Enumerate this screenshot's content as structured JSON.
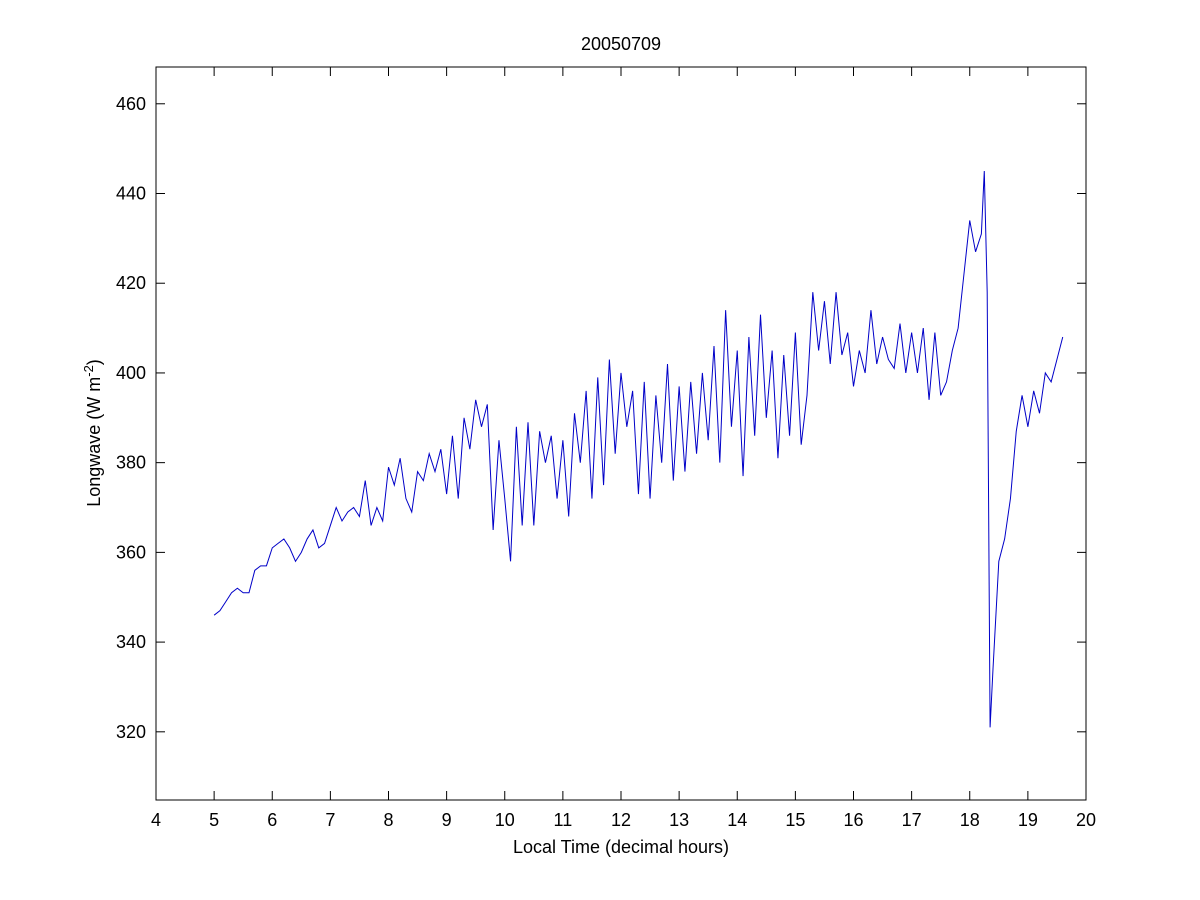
{
  "chart_data": {
    "type": "line",
    "title": "20050709",
    "xlabel": "Local Time (decimal hours)",
    "ylabel": [
      "Longwave (W m",
      "-2",
      ")"
    ],
    "xlim": [
      4,
      20
    ],
    "xticks": [
      4,
      5,
      6,
      7,
      8,
      9,
      10,
      11,
      12,
      13,
      14,
      15,
      16,
      17,
      18,
      19,
      20
    ],
    "ylim": [
      304.8,
      468.2
    ],
    "yticks": [
      320,
      340,
      360,
      380,
      400,
      420,
      440,
      460
    ],
    "series": [
      {
        "color": "#0000c8",
        "x": [
          5.0,
          5.1,
          5.2,
          5.3,
          5.4,
          5.5,
          5.6,
          5.7,
          5.8,
          5.9,
          6.0,
          6.1,
          6.2,
          6.3,
          6.4,
          6.5,
          6.6,
          6.7,
          6.8,
          6.9,
          7.0,
          7.1,
          7.2,
          7.3,
          7.4,
          7.5,
          7.6,
          7.7,
          7.8,
          7.9,
          8.0,
          8.1,
          8.2,
          8.3,
          8.4,
          8.5,
          8.6,
          8.7,
          8.8,
          8.9,
          9.0,
          9.1,
          9.2,
          9.3,
          9.4,
          9.5,
          9.6,
          9.7,
          9.8,
          9.9,
          10.0,
          10.1,
          10.2,
          10.3,
          10.4,
          10.5,
          10.6,
          10.7,
          10.8,
          10.9,
          11.0,
          11.1,
          11.2,
          11.3,
          11.4,
          11.5,
          11.6,
          11.7,
          11.8,
          11.9,
          12.0,
          12.1,
          12.2,
          12.3,
          12.4,
          12.5,
          12.6,
          12.7,
          12.8,
          12.9,
          13.0,
          13.1,
          13.2,
          13.3,
          13.4,
          13.5,
          13.6,
          13.7,
          13.8,
          13.9,
          14.0,
          14.1,
          14.2,
          14.3,
          14.4,
          14.5,
          14.6,
          14.7,
          14.8,
          14.9,
          15.0,
          15.1,
          15.2,
          15.3,
          15.4,
          15.5,
          15.6,
          15.7,
          15.8,
          15.9,
          16.0,
          16.1,
          16.2,
          16.3,
          16.4,
          16.5,
          16.6,
          16.7,
          16.8,
          16.9,
          17.0,
          17.1,
          17.2,
          17.3,
          17.4,
          17.5,
          17.6,
          17.7,
          17.8,
          17.9,
          18.0,
          18.1,
          18.2,
          18.25,
          18.3,
          18.35,
          18.4,
          18.5,
          18.6,
          18.7,
          18.8,
          18.9,
          19.0,
          19.1,
          19.2,
          19.3,
          19.4,
          19.5,
          19.6
        ],
        "values": [
          346,
          347,
          349,
          351,
          352,
          351,
          351,
          356,
          357,
          357,
          361,
          362,
          363,
          361,
          358,
          360,
          363,
          365,
          361,
          362,
          366,
          370,
          367,
          369,
          370,
          368,
          376,
          366,
          370,
          367,
          379,
          375,
          381,
          372,
          369,
          378,
          376,
          382,
          378,
          383,
          373,
          386,
          372,
          390,
          383,
          394,
          388,
          393,
          365,
          385,
          372,
          358,
          388,
          366,
          389,
          366,
          387,
          380,
          386,
          372,
          385,
          368,
          391,
          380,
          396,
          372,
          399,
          375,
          403,
          382,
          400,
          388,
          396,
          373,
          398,
          372,
          395,
          380,
          402,
          376,
          397,
          378,
          398,
          382,
          400,
          385,
          406,
          380,
          414,
          388,
          405,
          377,
          408,
          386,
          413,
          390,
          405,
          381,
          404,
          386,
          409,
          384,
          395,
          418,
          405,
          416,
          402,
          418,
          404,
          409,
          397,
          405,
          400,
          414,
          402,
          408,
          403,
          401,
          411,
          400,
          409,
          400,
          410,
          394,
          409,
          395,
          398,
          405,
          410,
          422,
          434,
          427,
          431,
          445,
          418,
          321,
          334,
          358,
          363,
          372,
          387,
          395,
          388,
          396,
          391,
          400,
          398,
          403,
          408
        ]
      }
    ]
  }
}
